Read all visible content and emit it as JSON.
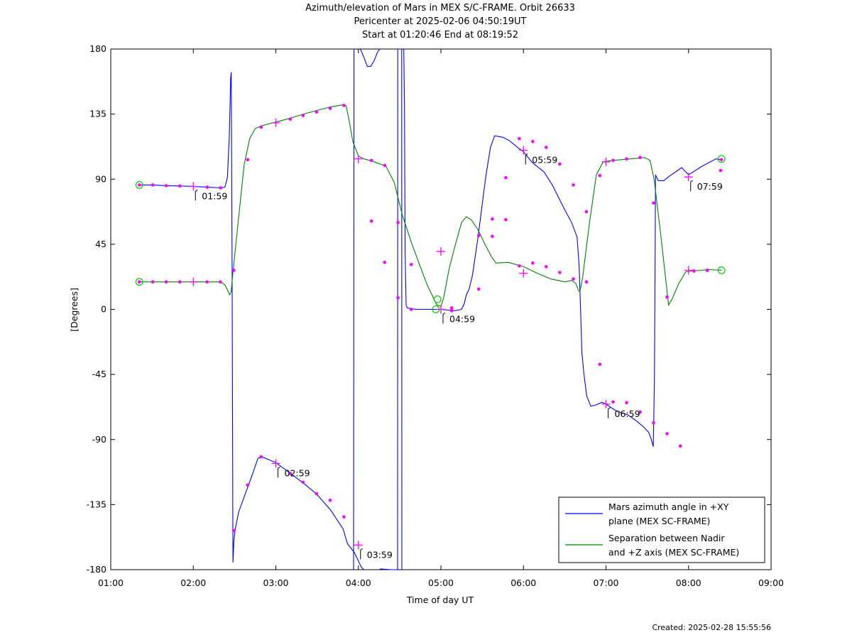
{
  "chart_data": {
    "type": "line",
    "title_lines": [
      "Azimuth/elevation of Mars in MEX S/C-FRAME.  Orbit 26633",
      "Pericenter at 2025-02-06 04:50:19UT",
      "Start at 01:20:46 End at 08:19:52"
    ],
    "xlabel": "Time of day UT",
    "ylabel": "[Degrees]",
    "xlim": [
      60,
      540
    ],
    "ylim": [
      -180,
      180
    ],
    "x_ticks": [
      {
        "v": 60,
        "label": "01:00"
      },
      {
        "v": 120,
        "label": "02:00"
      },
      {
        "v": 180,
        "label": "03:00"
      },
      {
        "v": 240,
        "label": "04:00"
      },
      {
        "v": 300,
        "label": "05:00"
      },
      {
        "v": 360,
        "label": "06:00"
      },
      {
        "v": 420,
        "label": "07:00"
      },
      {
        "v": 480,
        "label": "08:00"
      },
      {
        "v": 540,
        "label": "09:00"
      }
    ],
    "y_ticks": [
      {
        "v": 180,
        "label": "180"
      },
      {
        "v": 135,
        "label": "135"
      },
      {
        "v": 90,
        "label": "90"
      },
      {
        "v": 45,
        "label": "45"
      },
      {
        "v": 0,
        "label": "0"
      },
      {
        "v": -45,
        "label": "-45"
      },
      {
        "v": -90,
        "label": "-90"
      },
      {
        "v": -135,
        "label": "-135"
      },
      {
        "v": -180,
        "label": "-180"
      }
    ],
    "grid": false,
    "legend_position": "bottom-right",
    "series": [
      {
        "name": "Mars azimuth angle in +XY plane (MEX SC-FRAME)",
        "legend_lines": [
          "Mars azimuth angle in +XY",
          "plane (MEX SC-FRAME)"
        ],
        "color": "#0000ff",
        "points": [
          [
            80.8,
            86
          ],
          [
            90.5,
            86
          ],
          [
            100.3,
            85.5
          ],
          [
            110.2,
            85.3
          ],
          [
            119.5,
            85
          ],
          [
            130.2,
            84.5
          ],
          [
            139.9,
            84
          ],
          [
            143,
            84.5
          ],
          [
            144.8,
            91
          ],
          [
            146.2,
            120
          ],
          [
            147.2,
            160
          ],
          [
            147.6,
            164
          ],
          [
            148.2,
            30
          ],
          [
            148.8,
            -175
          ],
          [
            149.5,
            -160
          ],
          [
            150.5,
            -152
          ],
          [
            153,
            -140
          ],
          [
            158,
            -127
          ],
          [
            163,
            -114
          ],
          [
            167,
            -103
          ],
          [
            170,
            -102
          ],
          [
            180,
            -106
          ],
          [
            190,
            -113
          ],
          [
            199.8,
            -120
          ],
          [
            210,
            -128
          ],
          [
            220,
            -139
          ],
          [
            229,
            -152
          ],
          [
            232,
            -162
          ],
          [
            237,
            -168
          ],
          [
            240,
            -174
          ],
          [
            242,
            -178
          ],
          [
            244,
            -180
          ],
          [
            null,
            null
          ],
          [
            236.5,
            -180
          ],
          [
            236.8,
            180
          ],
          [
            null,
            null
          ],
          [
            241,
            180
          ],
          [
            242,
            179
          ],
          [
            244.5,
            173
          ],
          [
            246.5,
            168
          ],
          [
            249,
            168
          ],
          [
            251.5,
            172
          ],
          [
            254,
            178
          ],
          [
            255.5,
            180
          ],
          [
            null,
            null
          ],
          [
            255.5,
            -180
          ],
          [
            256,
            -179.5
          ],
          [
            264,
            -180
          ],
          [
            268,
            -180
          ],
          [
            268.5,
            -180
          ],
          [
            null,
            null
          ],
          [
            268.5,
            -180
          ],
          [
            268.6,
            180
          ],
          [
            null,
            null
          ],
          [
            271.5,
            180
          ],
          [
            271.6,
            -180
          ],
          [
            null,
            null
          ],
          [
            273,
            180
          ],
          [
            273.5,
            140
          ],
          [
            274,
            40
          ],
          [
            274.7,
            3
          ],
          [
            275.5,
            1
          ],
          [
            282,
            0
          ],
          [
            290,
            0
          ],
          [
            300,
            0
          ],
          [
            310,
            -1
          ],
          [
            315,
            0
          ],
          [
            317,
            4
          ],
          [
            318.5,
            10
          ],
          [
            320.5,
            14
          ],
          [
            323,
            24
          ],
          [
            327,
            50
          ],
          [
            331,
            80
          ],
          [
            333,
            94
          ],
          [
            336,
            112
          ],
          [
            339,
            120
          ],
          [
            345,
            119
          ],
          [
            350,
            116.5
          ],
          [
            357,
            111
          ],
          [
            360,
            109
          ],
          [
            366.5,
            101.5
          ],
          [
            375,
            95
          ],
          [
            381,
            86
          ],
          [
            390.5,
            68
          ],
          [
            395,
            60
          ],
          [
            399,
            50
          ],
          [
            400.5,
            30
          ],
          [
            401.5,
            0
          ],
          [
            402.5,
            -30
          ],
          [
            404,
            -45
          ],
          [
            406,
            -60
          ],
          [
            409,
            -67
          ],
          [
            413,
            -66
          ],
          [
            417,
            -64.3
          ],
          [
            420,
            -65.5
          ],
          [
            427,
            -70
          ],
          [
            436,
            -73
          ],
          [
            442,
            -77
          ],
          [
            447,
            -81
          ],
          [
            451,
            -85
          ],
          [
            453,
            -90
          ],
          [
            454.4,
            -95
          ],
          [
            455.2,
            -50
          ],
          [
            455.5,
            0
          ],
          [
            456,
            93
          ],
          [
            458,
            89
          ],
          [
            462,
            89
          ],
          [
            466,
            92
          ],
          [
            475,
            98
          ],
          [
            480,
            93
          ],
          [
            490,
            99
          ],
          [
            500,
            104
          ],
          [
            504,
            103.5
          ]
        ]
      },
      {
        "name": "Separation between Nadir and +Z axis (MEX SC-FRAME)",
        "legend_lines": [
          "Separation between Nadir",
          "and +Z axis (MEX SC-FRAME)"
        ],
        "color": "#008000",
        "points": [
          [
            80.8,
            19
          ],
          [
            90.5,
            19
          ],
          [
            100.3,
            19
          ],
          [
            110.2,
            19
          ],
          [
            120,
            19
          ],
          [
            130,
            19
          ],
          [
            139.7,
            19
          ],
          [
            143,
            17
          ],
          [
            145,
            13
          ],
          [
            146.5,
            10
          ],
          [
            147.5,
            12
          ],
          [
            149,
            27
          ],
          [
            152,
            55
          ],
          [
            157,
            100
          ],
          [
            161,
            118
          ],
          [
            165,
            125
          ],
          [
            170,
            127
          ],
          [
            180,
            129.5
          ],
          [
            190,
            132
          ],
          [
            200,
            135
          ],
          [
            210,
            137.5
          ],
          [
            220,
            140
          ],
          [
            229,
            141.5
          ],
          [
            231,
            141
          ],
          [
            233,
            132
          ],
          [
            236,
            116
          ],
          [
            240,
            106
          ],
          [
            244,
            104
          ],
          [
            250,
            102.5
          ],
          [
            260,
            99
          ],
          [
            266,
            88
          ],
          [
            272,
            65
          ],
          [
            279,
            45
          ],
          [
            284,
            32
          ],
          [
            290,
            17
          ],
          [
            297,
            3
          ],
          [
            300,
            2
          ],
          [
            302,
            8
          ],
          [
            306,
            28
          ],
          [
            310,
            43
          ],
          [
            315,
            60
          ],
          [
            318.5,
            64
          ],
          [
            322,
            62
          ],
          [
            327,
            55
          ],
          [
            332,
            45
          ],
          [
            337,
            36
          ],
          [
            340,
            32
          ],
          [
            349,
            32.5
          ],
          [
            360,
            29.5
          ],
          [
            370,
            25
          ],
          [
            380,
            21
          ],
          [
            390,
            19
          ],
          [
            395,
            20
          ],
          [
            398,
            18
          ],
          [
            400,
            13
          ],
          [
            401,
            12
          ],
          [
            403,
            22
          ],
          [
            408,
            60
          ],
          [
            413,
            93
          ],
          [
            418,
            102
          ],
          [
            425,
            103
          ],
          [
            438,
            104
          ],
          [
            448,
            105
          ],
          [
            452,
            103
          ],
          [
            455,
            90
          ],
          [
            460,
            50
          ],
          [
            463.5,
            20
          ],
          [
            465.5,
            3
          ],
          [
            468,
            7
          ],
          [
            473,
            18
          ],
          [
            478,
            26
          ],
          [
            483,
            26.5
          ],
          [
            495,
            27.5
          ],
          [
            504,
            27
          ]
        ]
      }
    ],
    "markers": {
      "dots_blue_series": [
        [
          80.8,
          86
        ],
        [
          90.5,
          86
        ],
        [
          100.3,
          85.5
        ],
        [
          110.2,
          85.3
        ],
        [
          130.2,
          84.5
        ],
        [
          139.9,
          84
        ],
        [
          149.5,
          -153
        ],
        [
          159.5,
          -121.5
        ],
        [
          169.3,
          -102
        ],
        [
          190.5,
          -113.5
        ],
        [
          199.8,
          -119.5
        ],
        [
          209.6,
          -127.5
        ],
        [
          219.5,
          -132
        ],
        [
          229.5,
          -143.5
        ],
        [
          249.5,
          61
        ],
        [
          259.1,
          32.5
        ],
        [
          268.8,
          8
        ],
        [
          278.5,
          0
        ],
        [
          307.9,
          -1
        ],
        [
          327.5,
          14
        ],
        [
          337.4,
          50.5
        ],
        [
          347.2,
          91
        ],
        [
          357,
          118
        ],
        [
          366.8,
          116
        ],
        [
          376.5,
          112
        ],
        [
          386.4,
          100.5
        ],
        [
          396.3,
          86
        ],
        [
          405.8,
          67.5
        ],
        [
          415.5,
          -38
        ],
        [
          425.2,
          -64
        ],
        [
          435,
          -64.5
        ],
        [
          444.8,
          -71
        ],
        [
          454.6,
          -78.5
        ],
        [
          464.4,
          -86
        ],
        [
          474.1,
          -94.5
        ],
        [
          483.9,
          26.5
        ],
        [
          493.6,
          27
        ],
        [
          503.3,
          96
        ],
        [
          504,
          103.5
        ]
      ],
      "dots_green_series": [
        [
          80.8,
          19
        ],
        [
          90.5,
          19
        ],
        [
          100.3,
          19
        ],
        [
          110.2,
          19
        ],
        [
          130,
          19
        ],
        [
          139.7,
          19
        ],
        [
          149.5,
          27
        ],
        [
          159.5,
          103.5
        ],
        [
          169.3,
          126
        ],
        [
          190.5,
          131.5
        ],
        [
          199.8,
          134
        ],
        [
          209.6,
          136.5
        ],
        [
          219.5,
          139
        ],
        [
          229.5,
          141
        ],
        [
          249.5,
          103
        ],
        [
          259.1,
          99.5
        ],
        [
          268.8,
          60
        ],
        [
          278.5,
          31
        ],
        [
          307.9,
          1
        ],
        [
          327.5,
          51
        ],
        [
          337.4,
          62.5
        ],
        [
          347.2,
          62
        ],
        [
          357,
          30
        ],
        [
          366.8,
          32
        ],
        [
          376.5,
          29.5
        ],
        [
          386.4,
          25.5
        ],
        [
          396.3,
          21
        ],
        [
          405.8,
          19
        ],
        [
          415.5,
          92.5
        ],
        [
          425.2,
          103
        ],
        [
          435,
          104
        ],
        [
          444.8,
          105
        ],
        [
          454.6,
          73.5
        ],
        [
          464.4,
          8.5
        ],
        [
          483.9,
          26.5
        ],
        [
          493.6,
          27
        ]
      ],
      "crosses": [
        [
          120,
          85
        ],
        [
          120,
          19
        ],
        [
          180,
          129
        ],
        [
          180,
          -106.5
        ],
        [
          240,
          104
        ],
        [
          240,
          -163
        ],
        [
          300,
          0
        ],
        [
          300,
          40
        ],
        [
          360,
          110
        ],
        [
          360,
          25
        ],
        [
          420,
          102
        ],
        [
          420,
          -65.5
        ],
        [
          480,
          91.5
        ],
        [
          480,
          27
        ]
      ],
      "circles": [
        [
          80.8,
          86
        ],
        [
          80.8,
          19
        ],
        [
          296.3,
          0
        ],
        [
          297.5,
          7
        ],
        [
          504,
          104
        ],
        [
          504,
          27
        ]
      ]
    },
    "annotations": [
      {
        "x": 120,
        "y": 85,
        "label": "01:59"
      },
      {
        "x": 180,
        "y": -106.5,
        "label": "02:59"
      },
      {
        "x": 240,
        "y": -163,
        "label": "03:59"
      },
      {
        "x": 300,
        "y": 0,
        "label": "04:59"
      },
      {
        "x": 360,
        "y": 110,
        "label": "05:59"
      },
      {
        "x": 420,
        "y": -65.5,
        "label": "06:59"
      },
      {
        "x": 480,
        "y": 91.5,
        "label": "07:59"
      }
    ]
  },
  "footer": {
    "created": "Created: 2025-02-28 15:55:56"
  },
  "colors": {
    "marker_dot": "#ff00ff",
    "circle_marker": "#00cc00"
  }
}
